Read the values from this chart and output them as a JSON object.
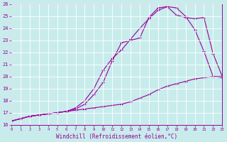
{
  "xlabel": "Windchill (Refroidissement éolien,°C)",
  "bg_color": "#c8ecec",
  "line_color": "#990099",
  "grid_color": "#ffffff",
  "xmin": 0,
  "xmax": 23,
  "ymin": 16,
  "ymax": 26,
  "series1_x": [
    0,
    1,
    2,
    3,
    4,
    5,
    6,
    7,
    8,
    9,
    10,
    11,
    12,
    13,
    14,
    15,
    16,
    17,
    18,
    19,
    20,
    21,
    22,
    23
  ],
  "series1_y": [
    16.3,
    16.5,
    16.7,
    16.8,
    16.9,
    17.0,
    17.1,
    17.4,
    18.0,
    19.0,
    20.5,
    21.5,
    22.2,
    23.1,
    24.0,
    24.8,
    25.5,
    25.8,
    25.7,
    25.0,
    23.9,
    22.1,
    20.0,
    19.9
  ],
  "series2_x": [
    0,
    1,
    2,
    3,
    4,
    5,
    6,
    7,
    8,
    9,
    10,
    11,
    12,
    13,
    14,
    15,
    16,
    17,
    18,
    19,
    20,
    21,
    22,
    23
  ],
  "series2_y": [
    16.3,
    16.5,
    16.7,
    16.8,
    16.9,
    17.0,
    17.1,
    17.3,
    17.7,
    18.5,
    19.5,
    21.3,
    22.8,
    23.0,
    23.2,
    24.9,
    25.7,
    25.8,
    25.1,
    24.9,
    24.8,
    24.9,
    21.9,
    20.0
  ],
  "series3_x": [
    0,
    1,
    2,
    3,
    4,
    5,
    6,
    7,
    8,
    9,
    10,
    11,
    12,
    13,
    14,
    15,
    16,
    17,
    18,
    19,
    20,
    21,
    22,
    23
  ],
  "series3_y": [
    16.3,
    16.5,
    16.7,
    16.8,
    16.9,
    17.0,
    17.1,
    17.2,
    17.3,
    17.4,
    17.5,
    17.6,
    17.7,
    17.9,
    18.2,
    18.5,
    18.9,
    19.2,
    19.4,
    19.6,
    19.8,
    19.9,
    20.0,
    20.0
  ]
}
